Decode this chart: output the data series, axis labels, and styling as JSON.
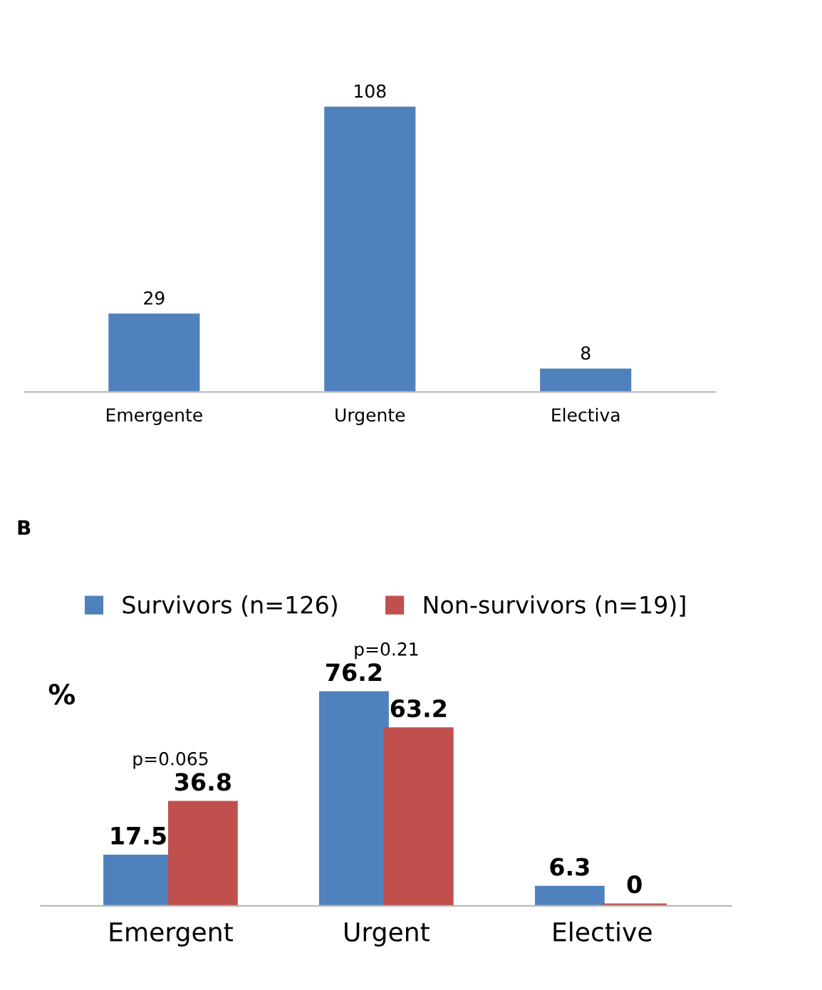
{
  "chart_data": [
    {
      "type": "bar",
      "categories": [
        "Emergente",
        "Urgente",
        "Electiva"
      ],
      "values": [
        29,
        108,
        8
      ],
      "color": "#4f81bd",
      "data_labels": true
    },
    {
      "type": "bar",
      "title": "B",
      "ylabel": "%",
      "categories": [
        "Emergent",
        "Urgent",
        "Elective"
      ],
      "series": [
        {
          "name": "Survivors (n=126)",
          "color": "#4f81bd",
          "values": [
            17.5,
            76.2,
            6.3
          ]
        },
        {
          "name": "Non-survivors (n=19)]",
          "color": "#c0504d",
          "values": [
            36.8,
            63.2,
            0
          ]
        }
      ],
      "data_labels": true,
      "legend": "top",
      "annotations": [
        "p=0.065",
        "p=0.21"
      ]
    }
  ]
}
